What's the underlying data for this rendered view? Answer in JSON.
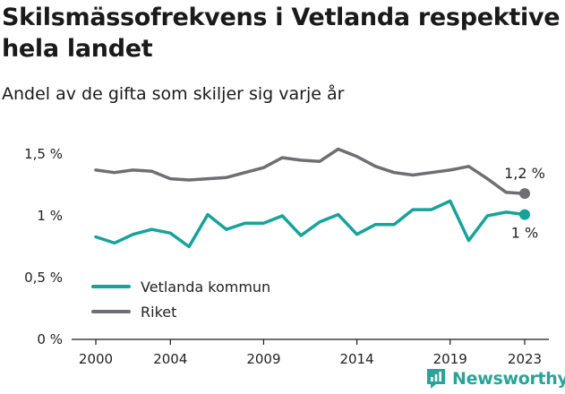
{
  "title": "Skilsmässofrekvens i Vetlanda respektive hela landet",
  "subtitle": "Andel av de gifta som skiljer sig varje år",
  "brand": {
    "name": "Newsworthy",
    "color": "#2aa39a"
  },
  "chart_data": {
    "type": "line",
    "x": [
      2000,
      2001,
      2002,
      2003,
      2004,
      2005,
      2006,
      2007,
      2008,
      2009,
      2010,
      2011,
      2012,
      2013,
      2014,
      2015,
      2016,
      2017,
      2018,
      2019,
      2020,
      2021,
      2022,
      2023
    ],
    "x_ticks": [
      2000,
      2004,
      2009,
      2014,
      2019,
      2023
    ],
    "x_tick_labels": [
      "2000",
      "2004",
      "2009",
      "2014",
      "2019",
      "2023"
    ],
    "ylim": [
      0,
      1.5
    ],
    "y_ticks": [
      0,
      0.5,
      1,
      1.5
    ],
    "y_tick_labels": [
      "0 %",
      "0,5 %",
      "1 %",
      "1,5 %"
    ],
    "grid": false,
    "legend_position": "bottom-left",
    "series": [
      {
        "name": "Vetlanda kommun",
        "color": "#16a39a",
        "values": [
          0.83,
          0.78,
          0.85,
          0.89,
          0.86,
          0.75,
          1.01,
          0.89,
          0.94,
          0.94,
          1.0,
          0.84,
          0.95,
          1.01,
          0.85,
          0.93,
          0.93,
          1.05,
          1.05,
          1.12,
          0.8,
          1.0,
          1.03,
          1.01
        ],
        "end_label": "1 %"
      },
      {
        "name": "Riket",
        "color": "#6e6e73",
        "values": [
          1.37,
          1.35,
          1.37,
          1.36,
          1.3,
          1.29,
          1.3,
          1.31,
          1.35,
          1.39,
          1.47,
          1.45,
          1.44,
          1.54,
          1.48,
          1.4,
          1.35,
          1.33,
          1.35,
          1.37,
          1.4,
          1.3,
          1.19,
          1.18
        ],
        "end_label": "1,2 %"
      }
    ]
  }
}
